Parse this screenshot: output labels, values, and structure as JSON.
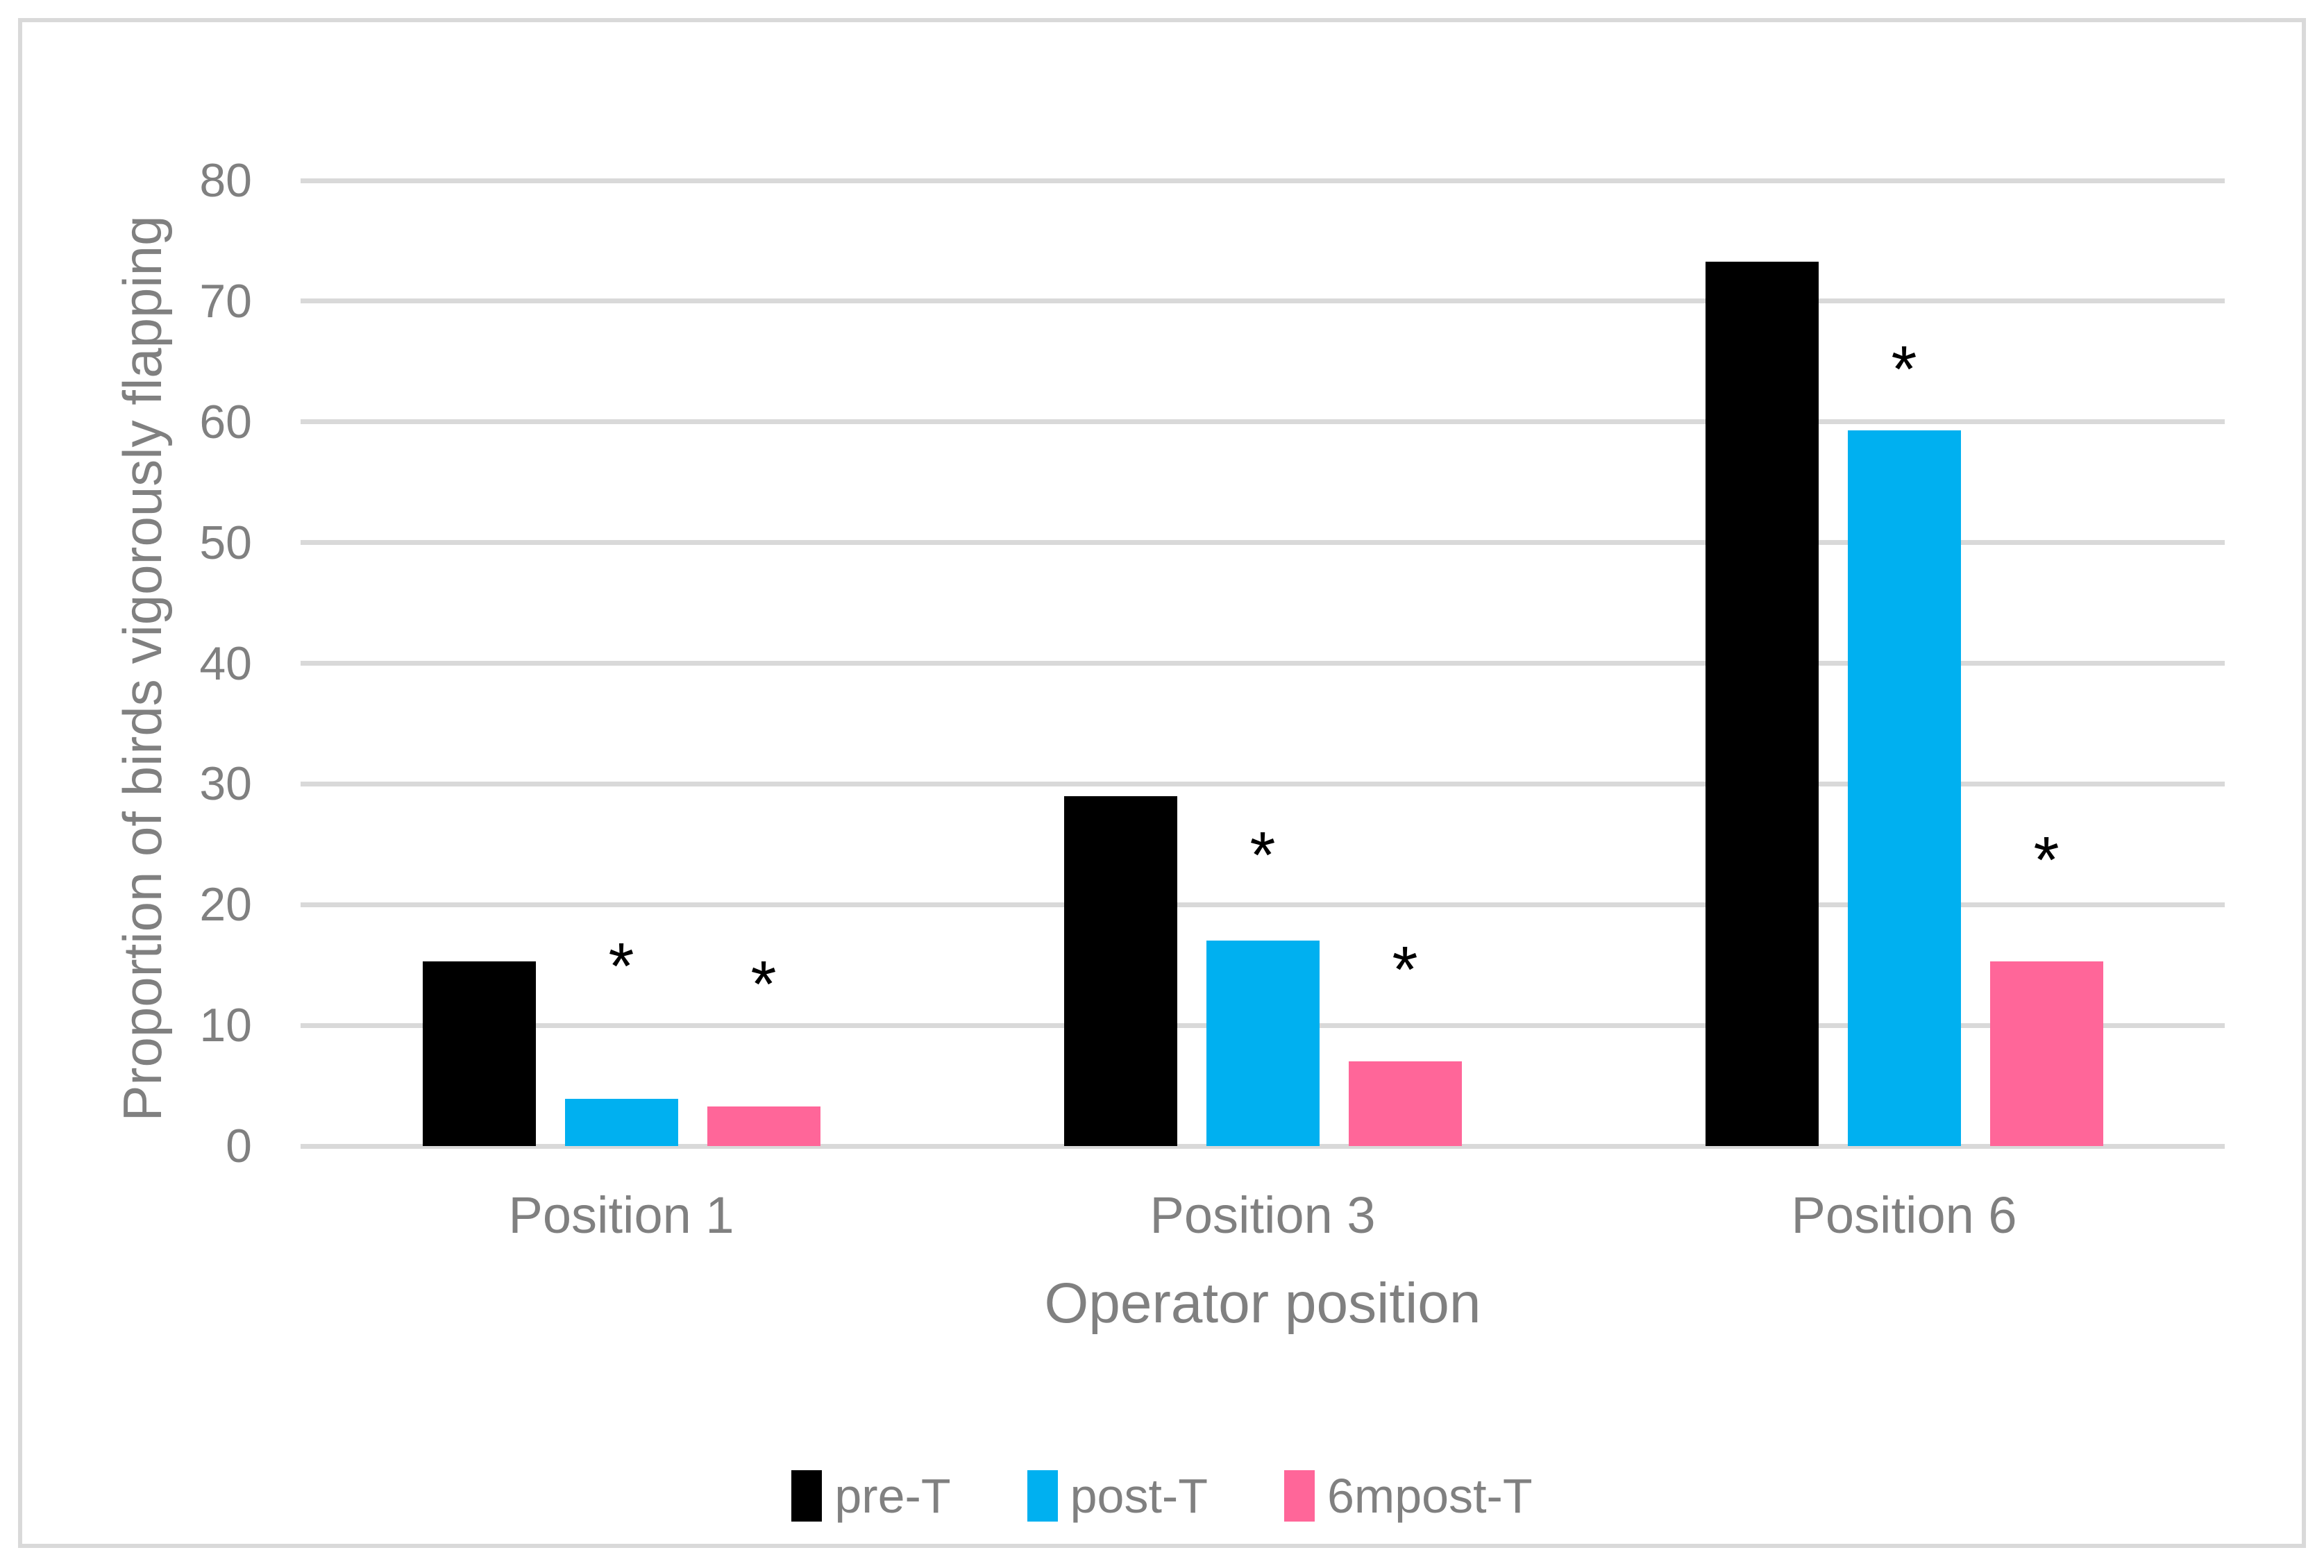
{
  "figure": {
    "background_color": "#FFFFFF",
    "border_color": "#D9D9D9"
  },
  "chart_data": {
    "type": "bar",
    "title": "",
    "xlabel": "Operator position",
    "ylabel": "Proportion of birds vigorously flapping",
    "categories": [
      "Position 1",
      "Position 3",
      "Position 6"
    ],
    "series": [
      {
        "name": "pre-T",
        "color": "#000000",
        "values": [
          15.3,
          29.0,
          73.3
        ],
        "significant": [
          false,
          false,
          false
        ],
        "star_y": [
          null,
          null,
          null
        ]
      },
      {
        "name": "post-T",
        "color": "#00B0F0",
        "values": [
          3.9,
          17.0,
          59.3
        ],
        "significant": [
          true,
          true,
          true
        ],
        "star_y": [
          15.4,
          24.6,
          64.9
        ]
      },
      {
        "name": "6mpost-T",
        "color": "#FF6699",
        "values": [
          3.3,
          7.0,
          15.3
        ],
        "significant": [
          true,
          true,
          true
        ],
        "star_y": [
          13.9,
          15.1,
          24.2
        ]
      }
    ],
    "ylim": [
      0,
      80
    ],
    "yticks": [
      0,
      10,
      20,
      30,
      40,
      50,
      60,
      70,
      80
    ],
    "grid": true,
    "gridline_color": "#D9D9D9",
    "text_color": "#808080",
    "legend_position": "bottom",
    "significance_marker": "*"
  }
}
